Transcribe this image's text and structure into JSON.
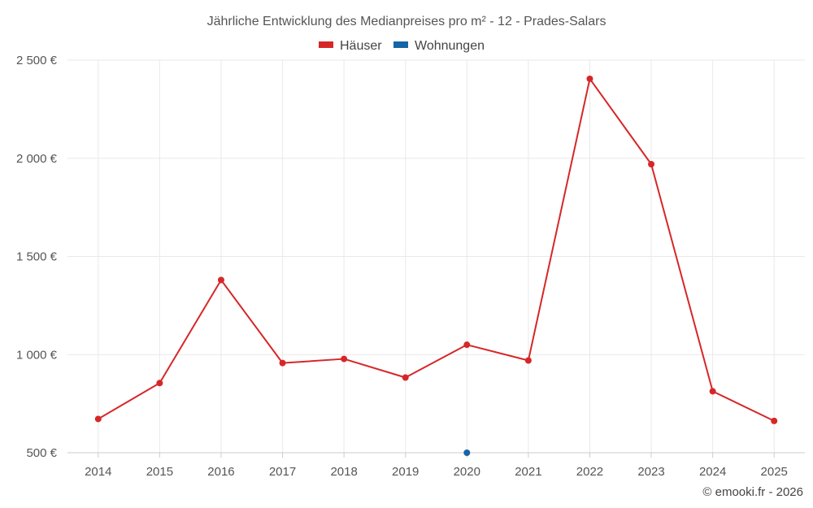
{
  "chart_data": {
    "type": "line",
    "title": "Jährliche Entwicklung des Medianpreises pro m² - 12 - Prades-Salars",
    "xlabel": "",
    "ylabel": "",
    "categories": [
      "2014",
      "2015",
      "2016",
      "2017",
      "2018",
      "2019",
      "2020",
      "2021",
      "2022",
      "2023",
      "2024",
      "2025"
    ],
    "ylim": [
      500,
      2500
    ],
    "yticks": [
      500,
      1000,
      1500,
      2000,
      2500
    ],
    "ytick_labels": [
      "500 €",
      "1 000 €",
      "1 500 €",
      "2 000 €",
      "2 500 €"
    ],
    "grid": true,
    "legend_position": "top-center",
    "series": [
      {
        "name": "Häuser",
        "color": "#d62728",
        "values": [
          672,
          855,
          1380,
          957,
          978,
          883,
          1050,
          970,
          2405,
          1970,
          813,
          662
        ]
      },
      {
        "name": "Wohnungen",
        "color": "#1565a7",
        "values": [
          null,
          null,
          null,
          null,
          null,
          null,
          500,
          null,
          null,
          null,
          null,
          null
        ]
      }
    ]
  },
  "credit": "© emooki.fr - 2026"
}
